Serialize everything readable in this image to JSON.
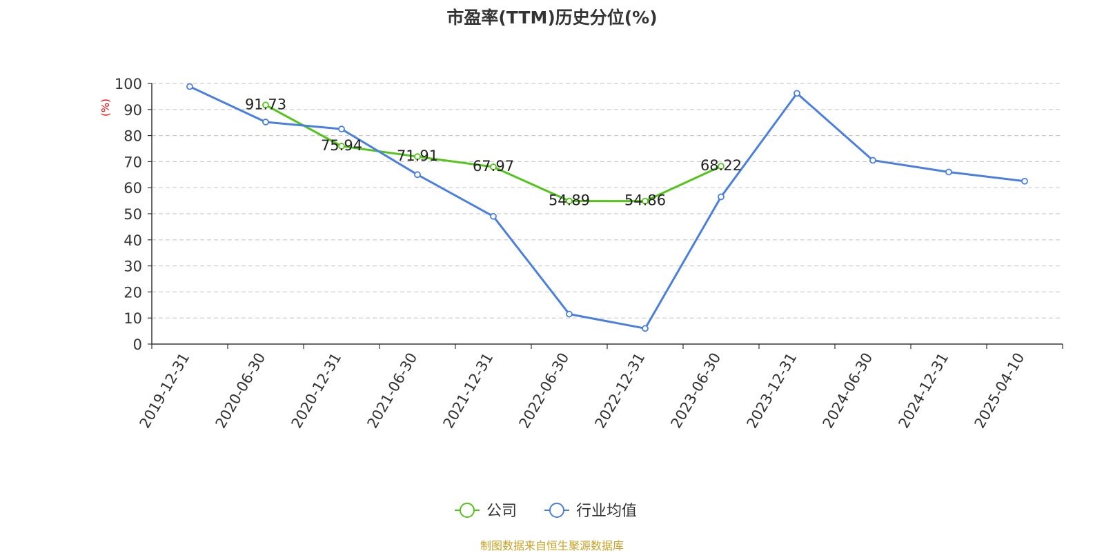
{
  "chart_data": {
    "type": "line",
    "title": "市盈率(TTM)历史分位(%)",
    "ylabel": "(%)",
    "xlabel": "",
    "categories": [
      "2019-12-31",
      "2020-06-30",
      "2020-12-31",
      "2021-06-30",
      "2021-12-31",
      "2022-06-30",
      "2022-12-31",
      "2023-06-30",
      "2023-12-31",
      "2024-06-30",
      "2024-12-31",
      "2025-04-10"
    ],
    "ylim": [
      0,
      100
    ],
    "yticks": [
      0,
      10,
      20,
      30,
      40,
      50,
      60,
      70,
      80,
      90,
      100
    ],
    "grid": true,
    "legend_position": "bottom",
    "series": [
      {
        "name": "公司",
        "color": "#52c41a",
        "values": [
          null,
          91.73,
          75.94,
          71.91,
          67.97,
          54.89,
          54.86,
          68.22,
          null,
          null,
          null,
          null
        ],
        "labels": [
          null,
          "91.73",
          "75.94",
          "71.91",
          "67.97",
          "54.89",
          "54.86",
          "68.22",
          null,
          null,
          null,
          null
        ]
      },
      {
        "name": "行业均值",
        "color": "#4a7fdf",
        "values": [
          98.8,
          85.2,
          82.5,
          65.0,
          49.0,
          11.5,
          6.0,
          56.5,
          96.2,
          70.5,
          66.0,
          62.5
        ]
      }
    ]
  },
  "footer": {
    "source": "制图数据来自恒生聚源数据库"
  },
  "colors": {
    "title": "#333333",
    "axis": "#333333",
    "grid": "#cccccc",
    "ylabel": "#ff0000",
    "source": "#c9a227"
  }
}
